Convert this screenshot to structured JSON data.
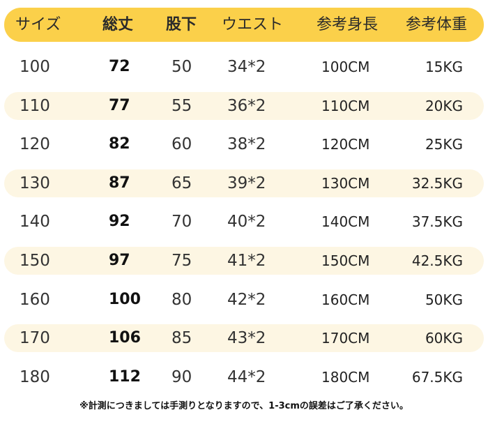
{
  "headers": {
    "size": "サイズ",
    "length": "総丈",
    "inseam": "股下",
    "waist": "ウエスト",
    "height": "参考身長",
    "weight": "参考体重"
  },
  "rows": [
    {
      "size": "100",
      "length": "72",
      "inseam": "50",
      "waist": "34*2",
      "height": "100CM",
      "weight": "15KG"
    },
    {
      "size": "110",
      "length": "77",
      "inseam": "55",
      "waist": "36*2",
      "height": "110CM",
      "weight": "20KG"
    },
    {
      "size": "120",
      "length": "82",
      "inseam": "60",
      "waist": "38*2",
      "height": "120CM",
      "weight": "25KG"
    },
    {
      "size": "130",
      "length": "87",
      "inseam": "65",
      "waist": "39*2",
      "height": "130CM",
      "weight": "32.5KG"
    },
    {
      "size": "140",
      "length": "92",
      "inseam": "70",
      "waist": "40*2",
      "height": "140CM",
      "weight": "37.5KG"
    },
    {
      "size": "150",
      "length": "97",
      "inseam": "75",
      "waist": "41*2",
      "height": "150CM",
      "weight": "42.5KG"
    },
    {
      "size": "160",
      "length": "100",
      "inseam": "80",
      "waist": "42*2",
      "height": "160CM",
      "weight": "50KG"
    },
    {
      "size": "170",
      "length": "106",
      "inseam": "85",
      "waist": "43*2",
      "height": "170CM",
      "weight": "60KG"
    },
    {
      "size": "180",
      "length": "112",
      "inseam": "90",
      "waist": "44*2",
      "height": "180CM",
      "weight": "67.5KG"
    }
  ],
  "note": "※計測につきましては手測りとなりますので、1-3cmの誤差はご了承ください。",
  "colors": {
    "header_bg": "#fbd04a",
    "alt_row_bg": "#fdf6e3"
  }
}
